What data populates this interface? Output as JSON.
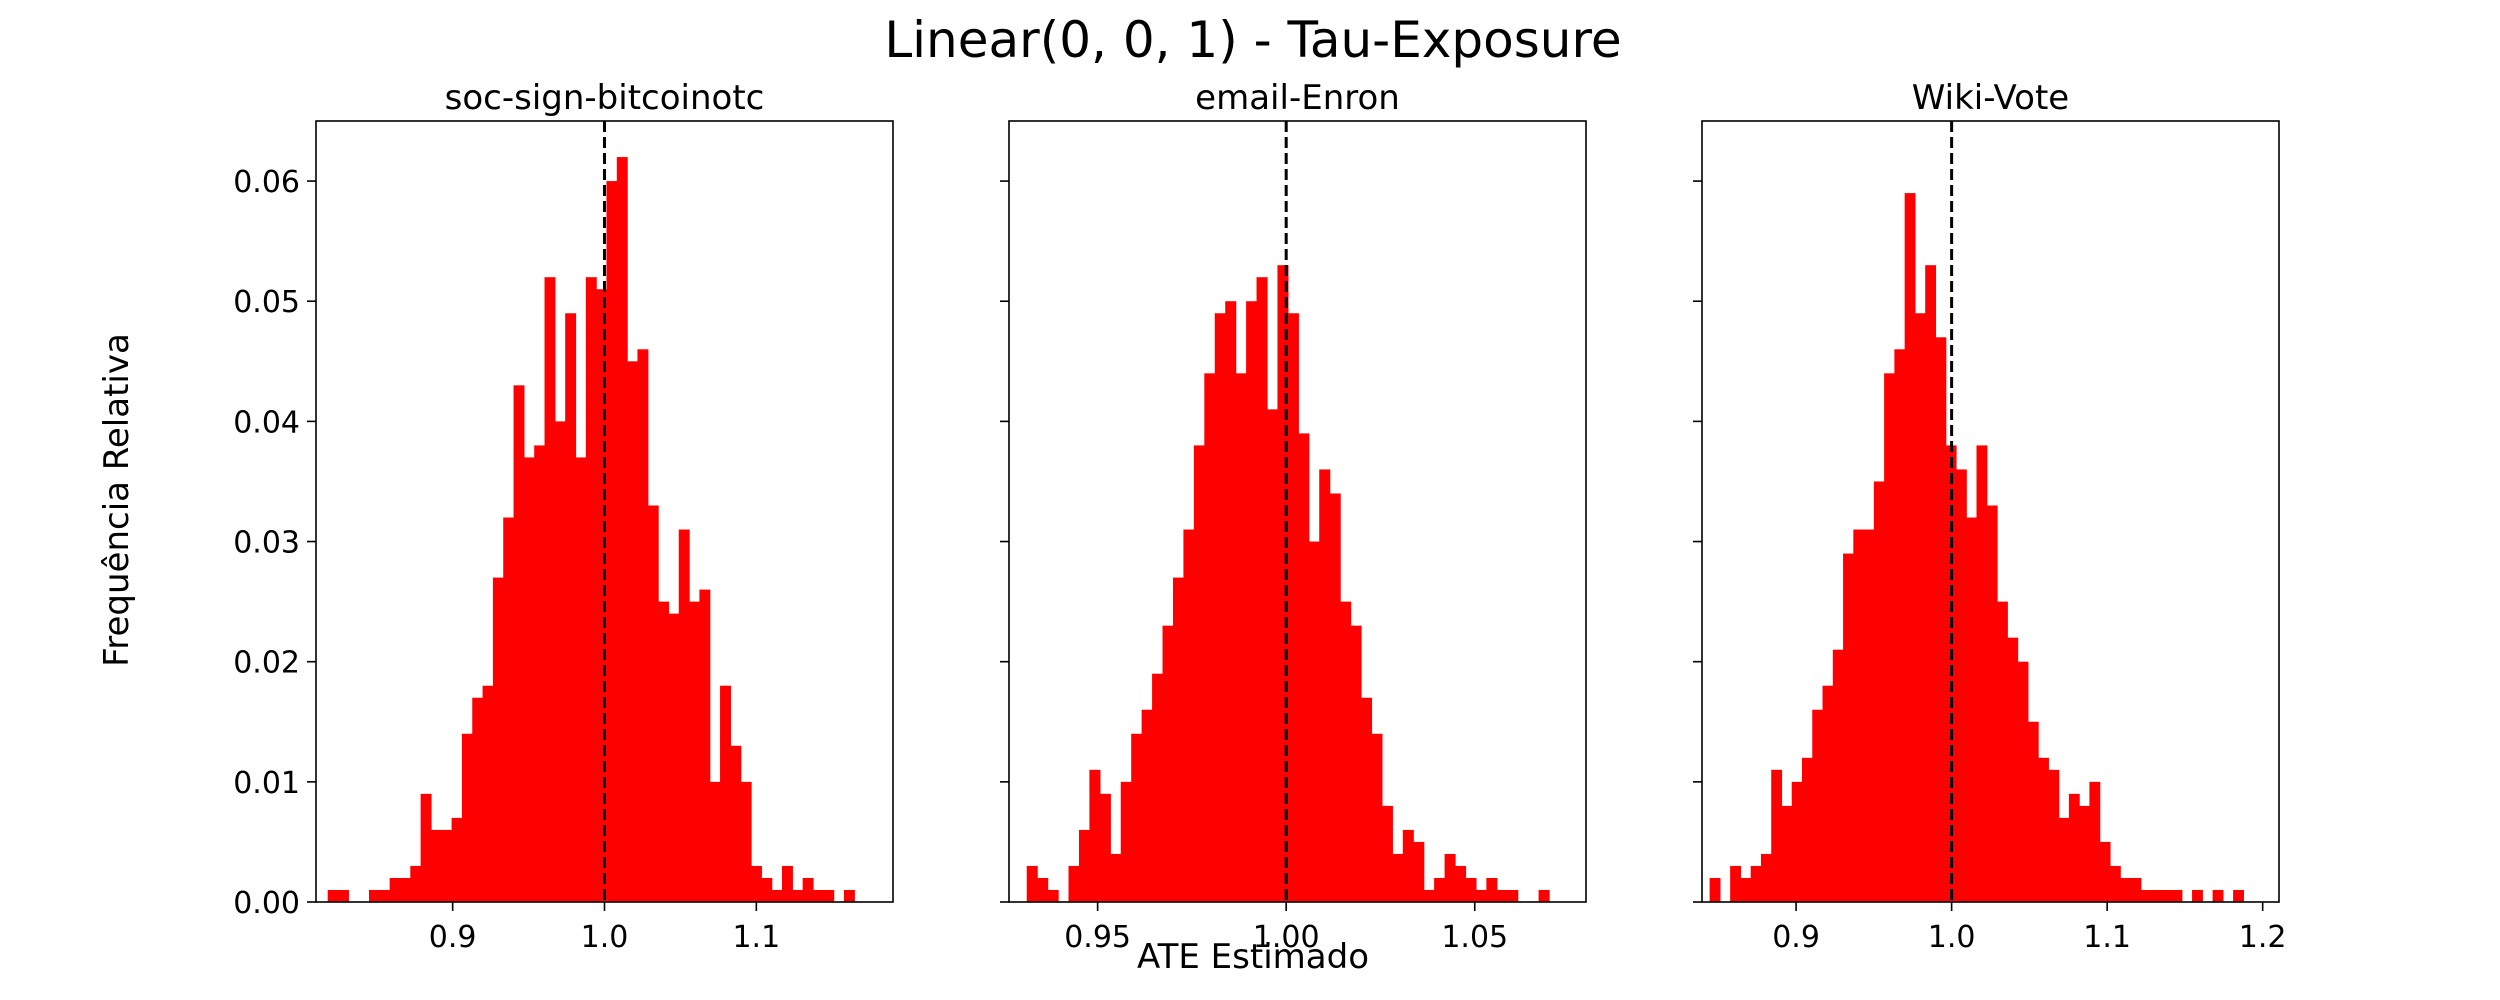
{
  "figure": {
    "title": "Linear(0, 0, 1) - Tau-Exposure",
    "ylabel": "Frequência Relativa",
    "xlabel": "ATE Estimado"
  },
  "colors": {
    "bars": "#ff0000",
    "reference_line": "#000000",
    "axes": "#000000"
  },
  "chart_data": [
    {
      "type": "bar",
      "title": "soc-sign-bitcoinotc",
      "xlim": [
        0.81,
        1.19
      ],
      "ylim": [
        0,
        0.065
      ],
      "xticks": [
        0.9,
        1.0,
        1.1
      ],
      "xtick_labels": [
        "0.9",
        "1.0",
        "1.1"
      ],
      "yticks": [
        0.0,
        0.01,
        0.02,
        0.03,
        0.04,
        0.05,
        0.06
      ],
      "ytick_labels": [
        "0.00",
        "0.01",
        "0.02",
        "0.03",
        "0.04",
        "0.05",
        "0.06"
      ],
      "reference_x": 1.0,
      "bin_start": 0.8177,
      "bin_width": 0.0068,
      "values": [
        0.001,
        0.001,
        0,
        0,
        0.001,
        0.001,
        0.002,
        0.002,
        0.003,
        0.009,
        0.006,
        0.006,
        0.007,
        0.014,
        0.017,
        0.018,
        0.027,
        0.032,
        0.043,
        0.037,
        0.038,
        0.052,
        0.04,
        0.049,
        0.037,
        0.052,
        0.051,
        0.06,
        0.062,
        0.045,
        0.046,
        0.033,
        0.025,
        0.024,
        0.031,
        0.025,
        0.026,
        0.01,
        0.018,
        0.013,
        0.01,
        0.003,
        0.002,
        0.001,
        0.003,
        0.001,
        0.002,
        0.001,
        0.001,
        0,
        0.001
      ]
    },
    {
      "type": "bar",
      "title": "email-Enron",
      "xlim": [
        0.9265,
        1.0795
      ],
      "ylim": [
        0,
        0.065
      ],
      "xticks": [
        0.95,
        1.0,
        1.05
      ],
      "xtick_labels": [
        "0.95",
        "1.00",
        "1.05"
      ],
      "yticks": [
        0.0,
        0.01,
        0.02,
        0.03,
        0.04,
        0.05,
        0.06
      ],
      "reference_x": 1.0,
      "bin_start": 0.9312,
      "bin_width": 0.00277,
      "values": [
        0.003,
        0.002,
        0.001,
        0,
        0.003,
        0.006,
        0.011,
        0.009,
        0.004,
        0.01,
        0.014,
        0.016,
        0.019,
        0.023,
        0.027,
        0.031,
        0.038,
        0.044,
        0.049,
        0.05,
        0.044,
        0.05,
        0.052,
        0.041,
        0.053,
        0.049,
        0.039,
        0.03,
        0.036,
        0.034,
        0.025,
        0.023,
        0.017,
        0.014,
        0.008,
        0.004,
        0.006,
        0.005,
        0.001,
        0.002,
        0.004,
        0.003,
        0.002,
        0.001,
        0.002,
        0.001,
        0.001,
        0,
        0,
        0.001
      ]
    },
    {
      "type": "bar",
      "title": "Wiki-Vote",
      "xlim": [
        0.8395,
        1.2105
      ],
      "ylim": [
        0,
        0.065
      ],
      "xticks": [
        0.9,
        1.0,
        1.1,
        1.2
      ],
      "xtick_labels": [
        "0.9",
        "1.0",
        "1.1",
        "1.2"
      ],
      "yticks": [
        0.0,
        0.01,
        0.02,
        0.03,
        0.04,
        0.05,
        0.06
      ],
      "reference_x": 1.0,
      "bin_start": 0.8444,
      "bin_width": 0.0066,
      "values": [
        0.002,
        0,
        0.003,
        0.002,
        0.003,
        0.004,
        0.011,
        0.008,
        0.01,
        0.012,
        0.016,
        0.018,
        0.021,
        0.029,
        0.031,
        0.031,
        0.035,
        0.044,
        0.046,
        0.059,
        0.049,
        0.053,
        0.047,
        0.038,
        0.036,
        0.032,
        0.038,
        0.033,
        0.025,
        0.022,
        0.02,
        0.015,
        0.012,
        0.011,
        0.007,
        0.009,
        0.008,
        0.01,
        0.005,
        0.003,
        0.002,
        0.002,
        0.001,
        0.001,
        0.001,
        0.001,
        0,
        0.001,
        0,
        0.001,
        0,
        0.001
      ]
    }
  ]
}
